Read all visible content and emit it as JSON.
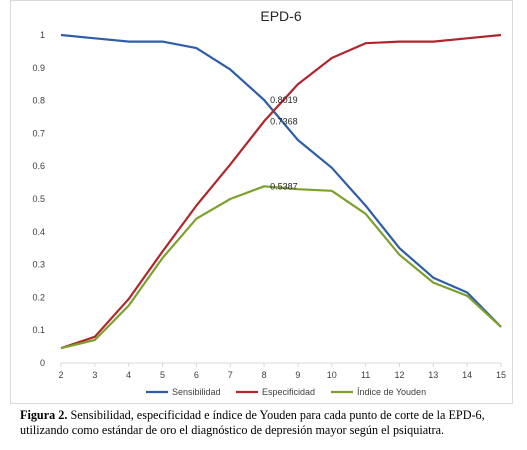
{
  "chart_data": {
    "type": "line",
    "title": "EPD-6",
    "x": [
      2,
      3,
      4,
      5,
      6,
      7,
      8,
      9,
      10,
      11,
      12,
      13,
      14,
      15
    ],
    "x_ticks": [
      "2",
      "3",
      "4",
      "5",
      "6",
      "7",
      "8",
      "9",
      "10",
      "11",
      "12",
      "13",
      "14",
      "15"
    ],
    "ylim": [
      0,
      1
    ],
    "y_ticks": [
      "0",
      "0.1",
      "0.2",
      "0.3",
      "0.4",
      "0.5",
      "0.6",
      "0.7",
      "0.8",
      "0.9",
      "1"
    ],
    "grid": false,
    "legend_position": "bottom",
    "series": [
      {
        "name": "Sensibilidad",
        "color": "#2e5ea8",
        "values": [
          1.0,
          0.99,
          0.98,
          0.98,
          0.96,
          0.895,
          0.8019,
          0.68,
          0.595,
          0.48,
          0.35,
          0.26,
          0.215,
          0.11
        ]
      },
      {
        "name": "Especificidad",
        "color": "#b0262d",
        "values": [
          0.045,
          0.08,
          0.195,
          0.34,
          0.48,
          0.605,
          0.7368,
          0.85,
          0.93,
          0.975,
          0.98,
          0.98,
          0.99,
          1.0
        ]
      },
      {
        "name": "Índice de Youden",
        "color": "#7ea02e",
        "values": [
          0.045,
          0.07,
          0.175,
          0.32,
          0.44,
          0.5,
          0.5387,
          0.53,
          0.525,
          0.455,
          0.33,
          0.245,
          0.205,
          0.11
        ]
      }
    ],
    "annotations": [
      {
        "x": 8,
        "y": 0.8019,
        "text": "0.8019"
      },
      {
        "x": 8,
        "y": 0.7368,
        "text": "0.7368"
      },
      {
        "x": 8,
        "y": 0.5387,
        "text": "0.5387"
      }
    ]
  },
  "caption": {
    "label": "Figura 2.",
    "text": " Sensibilidad, especificidad e índice de Youden para cada punto de corte de la EPD-6, utilizando como estándar de oro el diagnóstico de depresión mayor según el psiquiatra."
  }
}
